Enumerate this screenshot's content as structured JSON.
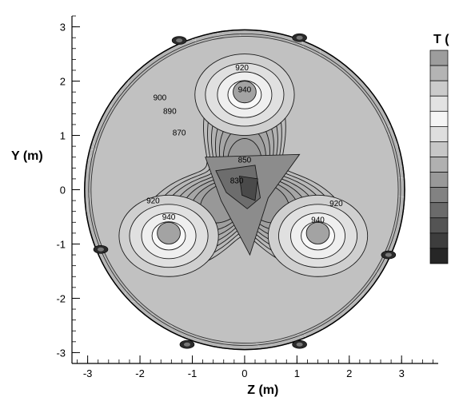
{
  "chart_data": {
    "type": "contour",
    "xlabel": "Z (m)",
    "ylabel": "Y (m)",
    "xlim": [
      -3.3,
      3.7
    ],
    "ylim": [
      -3.2,
      3.2
    ],
    "x_ticks": [
      "-3",
      "-2",
      "-1",
      "0",
      "1",
      "2",
      "3"
    ],
    "y_ticks": [
      "-3",
      "-2",
      "-1",
      "0",
      "1",
      "2",
      "3"
    ],
    "domain": {
      "shape": "circle",
      "center": [
        0,
        0
      ],
      "radius": 3.0
    },
    "colorbar": {
      "title": "T (",
      "levels": 14,
      "color_dark": "#1a1a1a",
      "color_light": "#f7f7f7"
    },
    "contour_levels": [
      830,
      850,
      870,
      890,
      900,
      920,
      940
    ],
    "contour_labels": [
      {
        "text": "920",
        "x": -0.05,
        "y": 2.25
      },
      {
        "text": "940",
        "x": 0.0,
        "y": 1.85
      },
      {
        "text": "900",
        "x": -1.62,
        "y": 1.7
      },
      {
        "text": "890",
        "x": -1.43,
        "y": 1.45
      },
      {
        "text": "870",
        "x": -1.25,
        "y": 1.05
      },
      {
        "text": "850",
        "x": 0.0,
        "y": 0.55
      },
      {
        "text": "830",
        "x": -0.15,
        "y": 0.17
      },
      {
        "text": "920",
        "x": -1.75,
        "y": -0.2
      },
      {
        "text": "940",
        "x": -1.45,
        "y": -0.5
      },
      {
        "text": "920",
        "x": 1.75,
        "y": -0.25
      },
      {
        "text": "940",
        "x": 1.4,
        "y": -0.55
      }
    ]
  }
}
